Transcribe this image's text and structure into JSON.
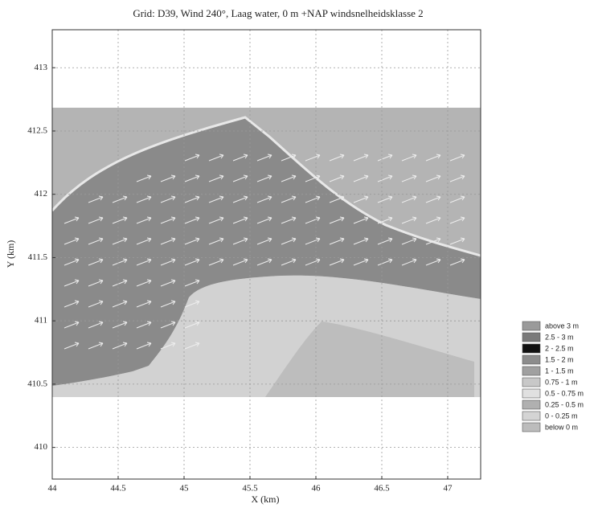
{
  "chart_data": {
    "type": "contour",
    "title": "Grid: D39, Wind 240°, Laag water, 0 m +NAP windsnelheidsklasse 2",
    "x_label": "X (km)",
    "y_label": "Y (km)",
    "xlim": [
      44,
      47.25
    ],
    "xticks": [
      44,
      44.5,
      45,
      45.5,
      46,
      46.5,
      47
    ],
    "ylim": [
      409.75,
      413.3
    ],
    "yticks": [
      410,
      410.5,
      411,
      411.5,
      412,
      412.5,
      413
    ],
    "grid": true,
    "legend": [
      {
        "label": "above 3 m",
        "color": "#9a9a9a"
      },
      {
        "label": "2.5 - 3 m",
        "color": "#7a7a7a"
      },
      {
        "label": "2 - 2.5 m",
        "color": "#111111"
      },
      {
        "label": "1.5 - 2 m",
        "color": "#8c8c8c"
      },
      {
        "label": "1 - 1.5 m",
        "color": "#a0a0a0"
      },
      {
        "label": "0.75 - 1 m",
        "color": "#c8c8c8"
      },
      {
        "label": "0.5 - 0.75 m",
        "color": "#e0e0e0"
      },
      {
        "label": "0.25 - 0.5 m",
        "color": "#b0b0b0"
      },
      {
        "label": "0 - 0.25 m",
        "color": "#d4d4d4"
      },
      {
        "label": "below 0 m",
        "color": "#bcbcbc"
      }
    ]
  }
}
